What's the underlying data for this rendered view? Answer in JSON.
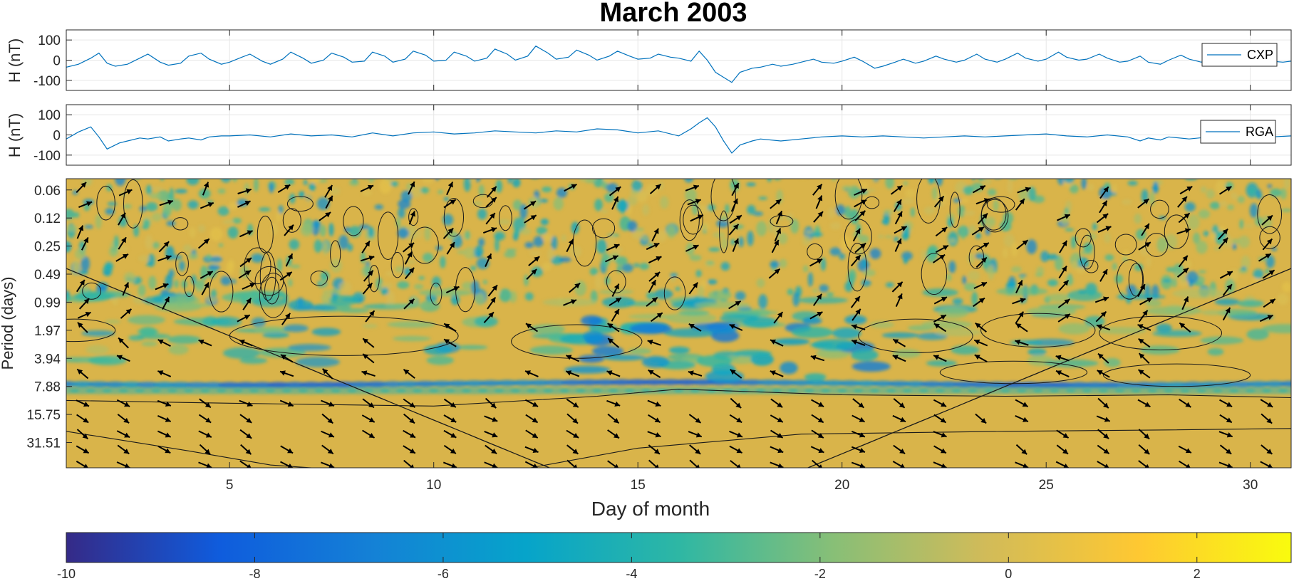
{
  "chart_data": [
    {
      "type": "line",
      "title": "March 2003",
      "ylabel": "H (nT)",
      "xlim": [
        1,
        31
      ],
      "ylim": [
        -150,
        150
      ],
      "yticks": [
        100,
        0,
        -100
      ],
      "legend": "right",
      "series": [
        {
          "name": "CXP",
          "color": "#0072BD",
          "x": [
            1.0,
            1.3,
            1.6,
            1.8,
            2.0,
            2.2,
            2.5,
            2.8,
            3.0,
            3.3,
            3.5,
            3.8,
            4.0,
            4.3,
            4.5,
            4.8,
            5.0,
            5.3,
            5.5,
            5.8,
            6.0,
            6.3,
            6.5,
            6.8,
            7.0,
            7.3,
            7.5,
            7.8,
            8.0,
            8.3,
            8.5,
            8.8,
            9.0,
            9.3,
            9.5,
            9.8,
            10.0,
            10.3,
            10.5,
            10.8,
            11.0,
            11.3,
            11.5,
            11.8,
            12.0,
            12.3,
            12.5,
            12.8,
            13.0,
            13.3,
            13.5,
            13.8,
            14.0,
            14.3,
            14.5,
            14.8,
            15.0,
            15.3,
            15.5,
            15.8,
            16.0,
            16.3,
            16.5,
            16.7,
            16.9,
            17.1,
            17.3,
            17.5,
            17.8,
            18.0,
            18.3,
            18.5,
            18.8,
            19.0,
            19.3,
            19.5,
            19.8,
            20.0,
            20.3,
            20.5,
            20.8,
            21.0,
            21.3,
            21.5,
            21.8,
            22.0,
            22.3,
            22.5,
            22.8,
            23.0,
            23.3,
            23.5,
            23.8,
            24.0,
            24.3,
            24.5,
            24.8,
            25.0,
            25.3,
            25.5,
            25.8,
            26.0,
            26.3,
            26.5,
            26.8,
            27.0,
            27.3,
            27.5,
            27.8,
            28.0,
            28.3,
            28.5,
            28.8,
            29.0,
            29.3,
            29.5,
            29.8,
            30.0,
            30.3,
            30.5,
            30.8,
            31.0
          ],
          "y": [
            -35,
            -20,
            10,
            35,
            -15,
            -30,
            -20,
            10,
            30,
            -10,
            -25,
            -15,
            20,
            35,
            5,
            -20,
            -10,
            15,
            30,
            -5,
            -20,
            5,
            40,
            10,
            -15,
            0,
            35,
            15,
            -10,
            -5,
            40,
            20,
            -10,
            5,
            45,
            25,
            -5,
            0,
            40,
            20,
            -5,
            10,
            55,
            30,
            0,
            20,
            70,
            35,
            5,
            15,
            50,
            25,
            0,
            20,
            45,
            20,
            5,
            10,
            30,
            15,
            10,
            -5,
            45,
            0,
            -60,
            -85,
            -110,
            -60,
            -40,
            -35,
            -20,
            -30,
            -20,
            -10,
            5,
            -10,
            -15,
            -5,
            15,
            -5,
            -40,
            -30,
            -10,
            5,
            -15,
            -5,
            20,
            5,
            -10,
            0,
            30,
            5,
            -10,
            5,
            35,
            10,
            -5,
            5,
            40,
            15,
            0,
            5,
            30,
            10,
            -10,
            -5,
            20,
            -10,
            -20,
            0,
            25,
            5,
            -10,
            10,
            30,
            0,
            -10,
            -5,
            20,
            -5,
            -10,
            -5
          ]
        }
      ]
    },
    {
      "type": "line",
      "ylabel": "H (nT)",
      "xlim": [
        1,
        31
      ],
      "ylim": [
        -150,
        150
      ],
      "yticks": [
        100,
        0,
        -100
      ],
      "legend": "right",
      "series": [
        {
          "name": "RGA",
          "color": "#0072BD",
          "x": [
            1.0,
            1.3,
            1.6,
            1.8,
            2.0,
            2.3,
            2.5,
            2.8,
            3.0,
            3.3,
            3.5,
            3.8,
            4.0,
            4.3,
            4.5,
            4.8,
            5.0,
            5.5,
            6.0,
            6.5,
            7.0,
            7.5,
            8.0,
            8.5,
            9.0,
            9.5,
            10.0,
            10.5,
            11.0,
            11.5,
            12.0,
            12.5,
            13.0,
            13.5,
            14.0,
            14.5,
            15.0,
            15.5,
            16.0,
            16.3,
            16.5,
            16.7,
            16.9,
            17.1,
            17.3,
            17.5,
            17.8,
            18.0,
            18.5,
            19.0,
            19.5,
            20.0,
            20.5,
            21.0,
            21.5,
            22.0,
            22.5,
            23.0,
            23.5,
            24.0,
            24.5,
            25.0,
            25.5,
            26.0,
            26.5,
            27.0,
            27.3,
            27.5,
            27.8,
            28.0,
            28.5,
            29.0,
            29.3,
            29.5,
            29.8,
            30.0,
            30.5,
            31.0
          ],
          "y": [
            -20,
            15,
            40,
            -10,
            -70,
            -40,
            -30,
            -15,
            -20,
            -10,
            -30,
            -20,
            -15,
            -25,
            -10,
            -5,
            -5,
            0,
            -10,
            5,
            -5,
            0,
            -10,
            10,
            -5,
            10,
            15,
            5,
            10,
            20,
            15,
            10,
            20,
            15,
            30,
            25,
            10,
            20,
            -5,
            30,
            60,
            85,
            40,
            -30,
            -90,
            -50,
            -30,
            -20,
            -30,
            -20,
            -10,
            -5,
            -10,
            -5,
            -10,
            -15,
            -10,
            -5,
            -10,
            -5,
            0,
            5,
            -5,
            -10,
            0,
            -10,
            -30,
            -15,
            -25,
            -10,
            -20,
            -10,
            -30,
            -20,
            -40,
            -15,
            -10,
            -5
          ]
        }
      ]
    },
    {
      "type": "heatmap",
      "xlabel": "Day of month",
      "ylabel": "Period (days)",
      "xlim": [
        1,
        31
      ],
      "xticks": [
        5,
        10,
        15,
        20,
        25,
        30
      ],
      "yticks": [
        "0.06",
        "0.12",
        "0.25",
        "0.49",
        "0.99",
        "1.97",
        "3.94",
        "7.88",
        "15.75",
        "31.51"
      ],
      "yscale": "log2",
      "colormap": "parula",
      "features": {
        "band_8day_period_row": 7.0,
        "coherent_low_band_rows": [
          7.2,
          10.2
        ],
        "noisy_high_freq_rows": [
          0.0,
          4.0
        ]
      }
    },
    {
      "type": "colorbar",
      "range": [
        -10,
        3
      ],
      "ticks": [
        -10,
        -8,
        -6,
        -4,
        -2,
        0,
        2
      ],
      "tick_labels": [
        "-10",
        "-8",
        "-6",
        "-4",
        "-2",
        "0",
        "2"
      ]
    }
  ],
  "colors": {
    "parula_stops": [
      "#352a87",
      "#0f5cdd",
      "#1481d6",
      "#06a4ca",
      "#2eb7a4",
      "#87bf77",
      "#d1bb59",
      "#fec832",
      "#f9fb0e"
    ],
    "background_warm": "#d9b44a",
    "line": "#0072BD"
  }
}
